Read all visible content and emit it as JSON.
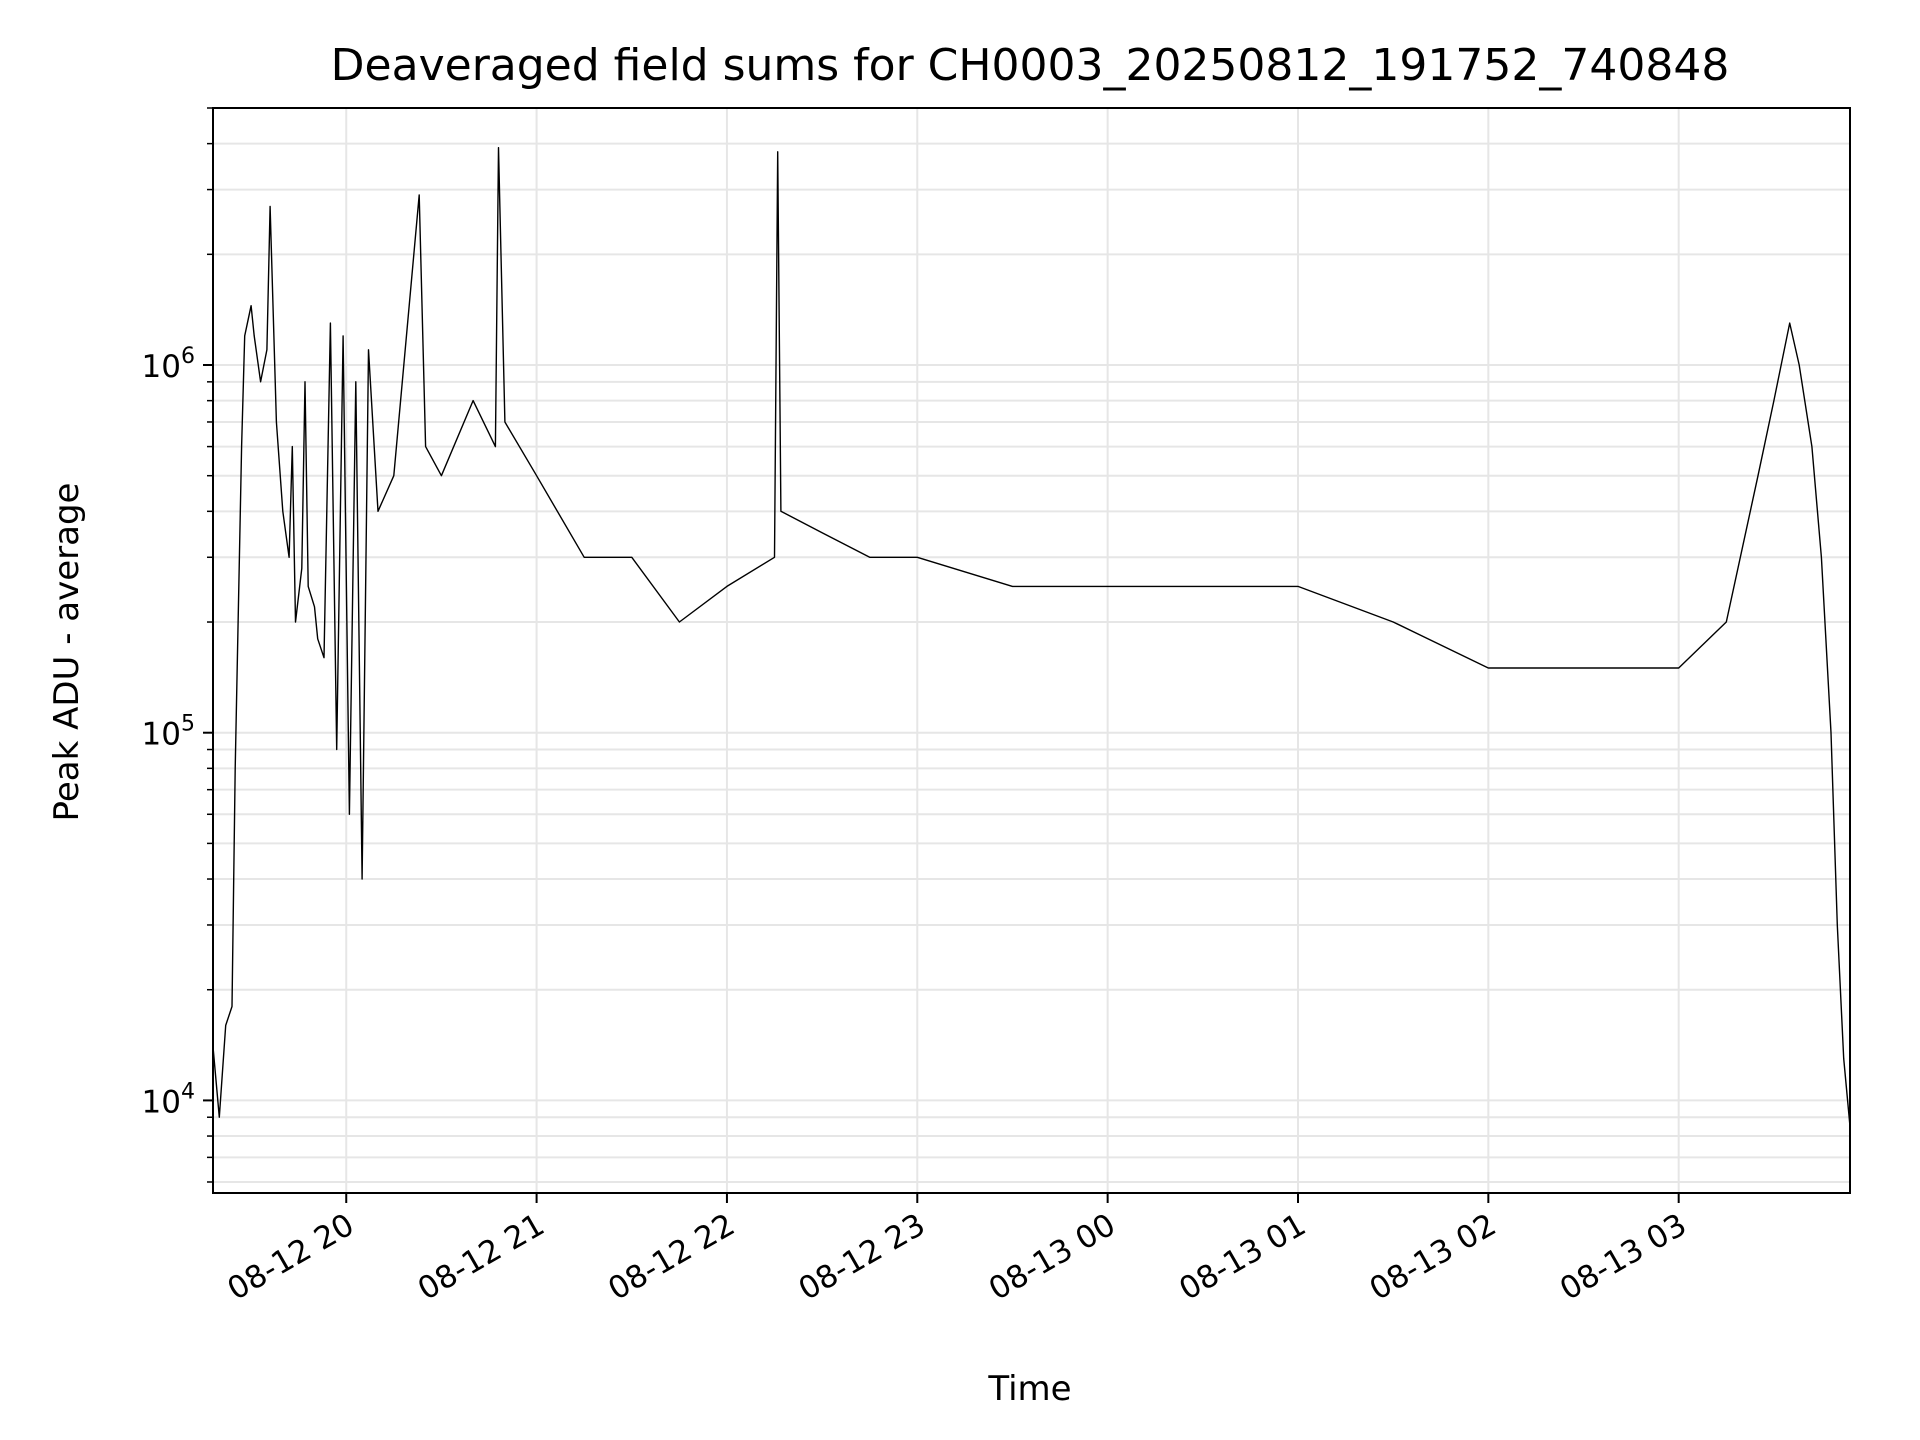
{
  "chart_data": {
    "type": "line",
    "title": "Deaveraged field sums for CH0003_20250812_191752_740848",
    "xlabel": "Time",
    "ylabel": "Peak ADU - average",
    "yscale": "log",
    "grid": true,
    "grid_color": "#e6e6e6",
    "line_color": "#000000",
    "xlim": [
      "2025-08-12 19:18",
      "2025-08-13 03:54"
    ],
    "ylim": [
      5600,
      5000000
    ],
    "x_ticks": [
      {
        "value": "2025-08-12 20:00",
        "label": "08-12 20"
      },
      {
        "value": "2025-08-12 21:00",
        "label": "08-12 21"
      },
      {
        "value": "2025-08-12 22:00",
        "label": "08-12 22"
      },
      {
        "value": "2025-08-12 23:00",
        "label": "08-12 23"
      },
      {
        "value": "2025-08-13 00:00",
        "label": "08-13 00"
      },
      {
        "value": "2025-08-13 01:00",
        "label": "08-13 01"
      },
      {
        "value": "2025-08-13 02:00",
        "label": "08-13 02"
      },
      {
        "value": "2025-08-13 03:00",
        "label": "08-13 03"
      }
    ],
    "y_ticks": [
      {
        "value": 10000,
        "label_base": "10",
        "label_exp": "4"
      },
      {
        "value": 100000,
        "label_base": "10",
        "label_exp": "5"
      },
      {
        "value": 1000000,
        "label_base": "10",
        "label_exp": "6"
      }
    ],
    "series": [
      {
        "x": [
          "2025-08-12 19:18",
          "2025-08-12 19:20",
          "2025-08-12 19:22",
          "2025-08-12 19:24",
          "2025-08-12 19:25",
          "2025-08-12 19:27",
          "2025-08-12 19:28",
          "2025-08-12 19:30",
          "2025-08-12 19:31",
          "2025-08-12 19:33",
          "2025-08-12 19:35",
          "2025-08-12 19:36",
          "2025-08-12 19:38",
          "2025-08-12 19:40",
          "2025-08-12 19:42",
          "2025-08-12 19:43",
          "2025-08-12 19:44",
          "2025-08-12 19:46",
          "2025-08-12 19:47",
          "2025-08-12 19:48",
          "2025-08-12 19:50",
          "2025-08-12 19:51",
          "2025-08-12 19:53",
          "2025-08-12 19:55",
          "2025-08-12 19:57",
          "2025-08-12 19:59",
          "2025-08-12 20:01",
          "2025-08-12 20:03",
          "2025-08-12 20:05",
          "2025-08-12 20:07",
          "2025-08-12 20:10",
          "2025-08-12 20:15",
          "2025-08-12 20:23",
          "2025-08-12 20:25",
          "2025-08-12 20:30",
          "2025-08-12 20:40",
          "2025-08-12 20:47",
          "2025-08-12 20:48",
          "2025-08-12 20:50",
          "2025-08-12 21:00",
          "2025-08-12 21:15",
          "2025-08-12 21:30",
          "2025-08-12 21:45",
          "2025-08-12 22:00",
          "2025-08-12 22:15",
          "2025-08-12 22:16",
          "2025-08-12 22:17",
          "2025-08-12 22:30",
          "2025-08-12 22:45",
          "2025-08-12 23:00",
          "2025-08-12 23:30",
          "2025-08-13 00:00",
          "2025-08-13 00:30",
          "2025-08-13 01:00",
          "2025-08-13 01:30",
          "2025-08-13 02:00",
          "2025-08-13 02:30",
          "2025-08-13 03:00",
          "2025-08-13 03:15",
          "2025-08-13 03:25",
          "2025-08-13 03:30",
          "2025-08-13 03:35",
          "2025-08-13 03:38",
          "2025-08-13 03:42",
          "2025-08-13 03:45",
          "2025-08-13 03:48",
          "2025-08-13 03:50",
          "2025-08-13 03:52",
          "2025-08-13 03:54"
        ],
        "y": [
          14000,
          9000,
          16000,
          18000,
          80000,
          600000,
          1200000,
          1450000,
          1200000,
          900000,
          1100000,
          2700000,
          700000,
          400000,
          300000,
          600000,
          200000,
          280000,
          900000,
          250000,
          220000,
          180000,
          160000,
          1300000,
          90000,
          1200000,
          60000,
          900000,
          40000,
          1100000,
          400000,
          500000,
          2900000,
          600000,
          500000,
          800000,
          600000,
          3900000,
          700000,
          500000,
          300000,
          300000,
          200000,
          250000,
          300000,
          3800000,
          400000,
          350000,
          300000,
          300000,
          250000,
          250000,
          250000,
          250000,
          200000,
          150000,
          150000,
          150000,
          200000,
          500000,
          800000,
          1300000,
          1000000,
          600000,
          300000,
          100000,
          30000,
          13000,
          8500
        ]
      }
    ]
  }
}
